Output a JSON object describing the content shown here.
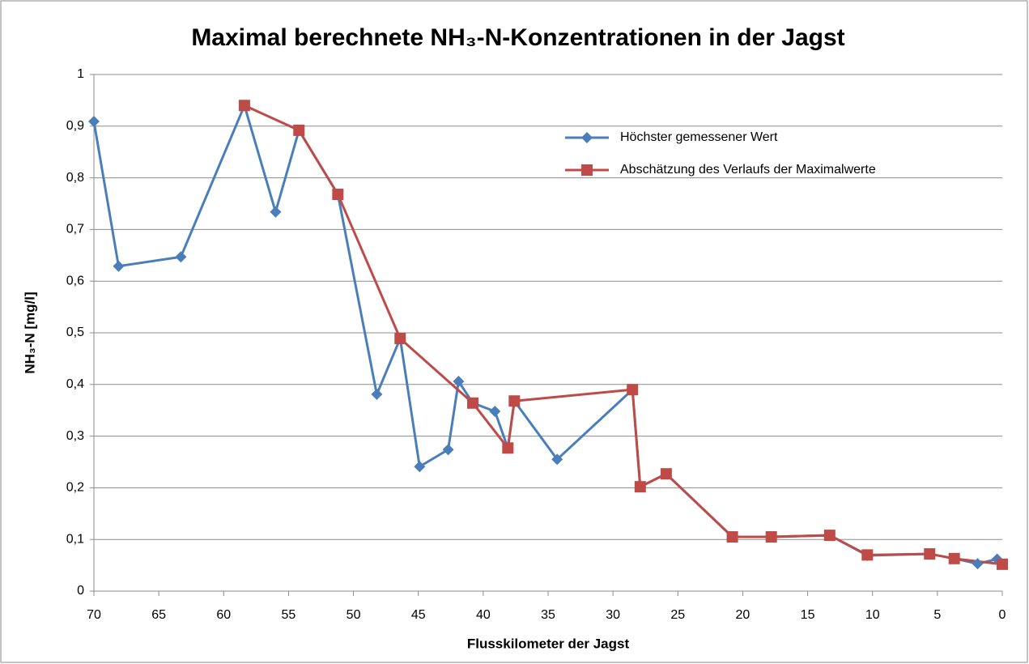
{
  "chart_data": {
    "type": "line",
    "title": "Maximal berechnete NH₃-N-Konzentrationen in der Jagst",
    "x_label": "Flusskilometer der Jagst",
    "y_label": "NH₃-N [mg/l]",
    "xlim": [
      70,
      0
    ],
    "xticks": [
      70,
      65,
      60,
      55,
      50,
      45,
      40,
      35,
      30,
      25,
      20,
      15,
      10,
      5,
      0
    ],
    "ylim": [
      0,
      1
    ],
    "yticks": [
      0,
      {
        "value": 0.1,
        "label": "0,1"
      },
      {
        "value": 0.2,
        "label": "0,2"
      },
      {
        "value": 0.3,
        "label": "0,3"
      },
      {
        "value": 0.4,
        "label": "0,4"
      },
      {
        "value": 0.5,
        "label": "0,5"
      },
      {
        "value": 0.6,
        "label": "0,6"
      },
      {
        "value": 0.7,
        "label": "0,7"
      },
      {
        "value": 0.8,
        "label": "0,8"
      },
      {
        "value": 0.9,
        "label": "0,9"
      },
      1
    ],
    "grid": true,
    "legend": "upper right",
    "series": [
      {
        "name": "Höchster gemessener Wert",
        "color": "#4a7ebb",
        "marker": "diamond",
        "x": [
          70,
          68.1,
          63.3,
          58.4,
          56.0,
          54.2,
          51.2,
          48.2,
          46.4,
          44.9,
          42.7,
          41.9,
          40.8,
          39.1,
          38.1,
          37.6,
          34.3,
          28.5,
          27.9,
          25.9,
          20.8,
          17.8,
          13.3,
          10.4,
          5.6,
          3.7,
          1.9,
          0.4
        ],
        "values": [
          0.909,
          0.629,
          0.647,
          0.94,
          0.734,
          0.892,
          0.768,
          0.381,
          0.489,
          0.241,
          0.274,
          0.406,
          0.364,
          0.348,
          0.277,
          0.368,
          0.255,
          0.39,
          0.202,
          0.227,
          0.105,
          0.105,
          0.108,
          0.069,
          0.072,
          0.063,
          0.053,
          0.062
        ]
      },
      {
        "name": "Abschätzung des Verlaufs der Maximalwerte",
        "color": "#be4b48",
        "marker": "square",
        "x": [
          58.4,
          54.2,
          51.2,
          46.4,
          40.8,
          38.1,
          37.6,
          28.5,
          27.9,
          25.9,
          20.8,
          17.8,
          13.3,
          10.4,
          5.6,
          3.7,
          0
        ],
        "values": [
          0.94,
          0.892,
          0.768,
          0.489,
          0.364,
          0.277,
          0.368,
          0.39,
          0.202,
          0.227,
          0.105,
          0.105,
          0.108,
          0.07,
          0.072,
          0.063,
          0.052
        ]
      }
    ]
  }
}
